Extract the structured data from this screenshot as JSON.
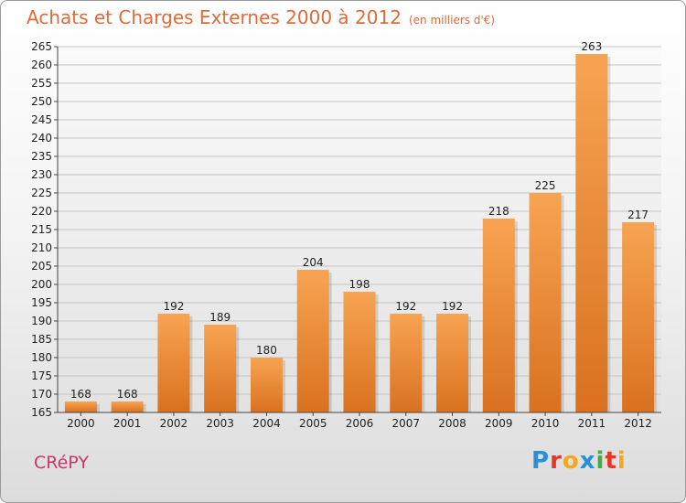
{
  "header": {
    "title": "Achats et Charges Externes 2000 à 2012",
    "subtitle": "(en milliers d'€)"
  },
  "footer": {
    "commune": "CRéPY",
    "logo_letters": [
      "P",
      "r",
      "o",
      "x",
      "i",
      "t",
      "i"
    ],
    "logo_colors": [
      "#2a8fd6",
      "#e8352a",
      "#f5a623",
      "#2a8fd6",
      "#49a942",
      "#e8352a",
      "#f5a623"
    ]
  },
  "chart_data": {
    "type": "bar",
    "title": "Achats et Charges Externes 2000 à 2012",
    "subtitle": "(en milliers d'€)",
    "xlabel": "",
    "ylabel": "",
    "categories": [
      "2000",
      "2001",
      "2002",
      "2003",
      "2004",
      "2005",
      "2006",
      "2007",
      "2008",
      "2009",
      "2010",
      "2011",
      "2012"
    ],
    "values": [
      168,
      168,
      192,
      189,
      180,
      204,
      198,
      192,
      192,
      218,
      225,
      263,
      217
    ],
    "ylim": [
      165,
      265
    ],
    "yticks": [
      165,
      170,
      175,
      180,
      185,
      190,
      195,
      200,
      205,
      210,
      215,
      220,
      225,
      230,
      235,
      240,
      245,
      250,
      255,
      260,
      265
    ],
    "grid": true,
    "bar_color_top": "#f7a452",
    "bar_color_bottom": "#d9711f"
  }
}
